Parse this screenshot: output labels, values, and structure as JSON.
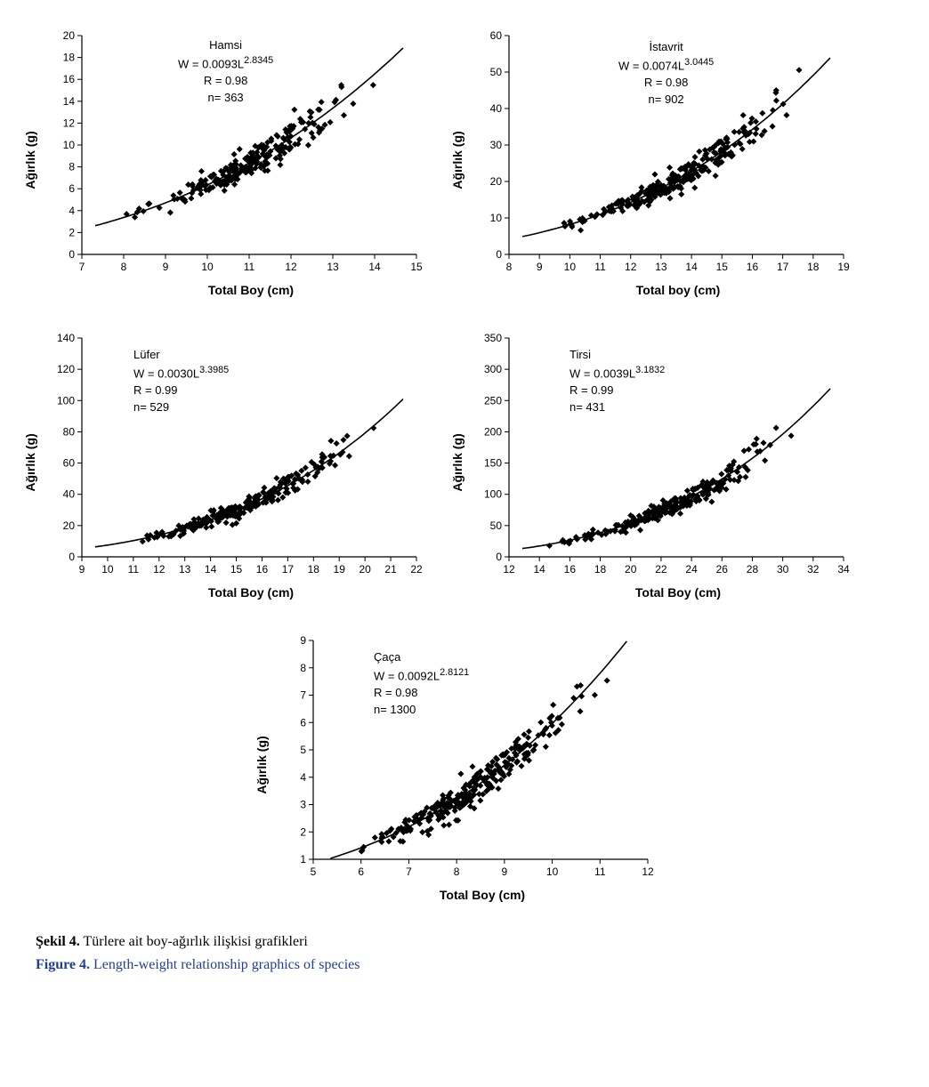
{
  "figure_caption_tr_label": "Şekil 4.",
  "figure_caption_tr_text": " Türlere ait boy-ağırlık ilişkisi grafikleri",
  "figure_caption_en_label": "Figure 4.",
  "figure_caption_en_text": " Length-weight relationship graphics of species",
  "common_y_label": "Ağırlık (g)",
  "common_x_label_title": "Total Boy (cm)",
  "common_x_label_lower": "Total boy (cm)",
  "panels": {
    "hamsi": {
      "title": "Hamsi",
      "eq_prefix": "W = 0.0093L",
      "eq_exp": "2.8345",
      "r_line": "R = 0.98",
      "n_line": "n= 363",
      "a": 0.0093,
      "b": 2.8345,
      "xlim": [
        7,
        15
      ],
      "xtick_step": 1,
      "ylim": [
        0,
        20
      ],
      "ytick_step": 2,
      "marker_color": "#000000",
      "line_color": "#000000",
      "axis_color": "#000000",
      "background": "#ffffff",
      "marker_size": 5,
      "n_points": 220
    },
    "istavrit": {
      "title": "İstavrit",
      "eq_prefix": "W = 0.0074L",
      "eq_exp": "3.0445",
      "r_line": "R = 0.98",
      "n_line": "n= 902",
      "a": 0.0074,
      "b": 3.0445,
      "xlim": [
        8,
        19
      ],
      "xtick_step": 1,
      "ylim": [
        0,
        60
      ],
      "ytick_step": 10,
      "marker_color": "#000000",
      "line_color": "#000000",
      "axis_color": "#000000",
      "background": "#ffffff",
      "marker_size": 5,
      "n_points": 260
    },
    "lufer": {
      "title": "Lüfer",
      "eq_prefix": "W = 0.0030L",
      "eq_exp": "3.3985",
      "r_line": "R = 0.99",
      "n_line": "n= 529",
      "a": 0.003,
      "b": 3.3985,
      "xlim": [
        9,
        22
      ],
      "xtick_step": 1,
      "ylim": [
        0,
        140
      ],
      "ytick_step": 20,
      "marker_color": "#000000",
      "line_color": "#000000",
      "axis_color": "#000000",
      "background": "#ffffff",
      "marker_size": 5,
      "n_points": 240
    },
    "tirsi": {
      "title": "Tirsi",
      "eq_prefix": "W = 0.0039L",
      "eq_exp": "3.1832",
      "r_line": "R = 0.99",
      "n_line": "n= 431",
      "a": 0.0039,
      "b": 3.1832,
      "xlim": [
        12,
        34
      ],
      "xtick_step": 2,
      "ylim": [
        0,
        350
      ],
      "ytick_step": 50,
      "marker_color": "#000000",
      "line_color": "#000000",
      "axis_color": "#000000",
      "background": "#ffffff",
      "marker_size": 5,
      "n_points": 240
    },
    "caca": {
      "title": "Çaça",
      "eq_prefix": "W = 0.0092L",
      "eq_exp": "2.8121",
      "r_line": "R = 0.98",
      "n_line": "n= 1300",
      "a": 0.0092,
      "b": 2.8121,
      "xlim": [
        5,
        12
      ],
      "xtick_step": 1,
      "ylim": [
        1,
        9
      ],
      "ytick_step": 1,
      "marker_color": "#000000",
      "line_color": "#000000",
      "axis_color": "#000000",
      "background": "#ffffff",
      "marker_size": 5,
      "n_points": 260
    }
  }
}
